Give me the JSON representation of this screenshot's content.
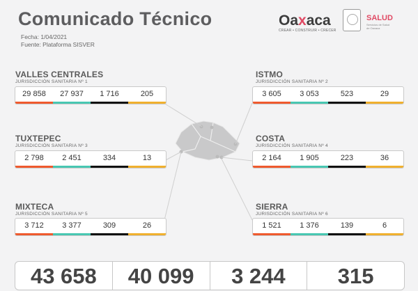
{
  "header": {
    "title": "Comunicado Técnico",
    "fecha": "Fecha: 1/04/2021",
    "fuente": "Fuente: Plataforma SISVER"
  },
  "logos": {
    "oaxaca_text_a": "Oa",
    "oaxaca_text_x": "x",
    "oaxaca_text_b": "aca",
    "oaxaca_tagline": "CREAR • CONSTRUIR • CRECER",
    "salud": "SALUD"
  },
  "colors": {
    "orange": "#ef5a2e",
    "teal": "#48c7b2",
    "black": "#111111",
    "yellow": "#f0b02e",
    "brand_pink": "#e04a64"
  },
  "regions": [
    {
      "name": "VALLES CENTRALES",
      "juris": "JURISDICCIÓN SANITARIA Nº 1",
      "values": [
        "29 858",
        "27 937",
        "1 716",
        "205"
      ]
    },
    {
      "name": "ISTMO",
      "juris": "JURISDICCIÓN SANITARIA Nº 2",
      "values": [
        "3 605",
        "3 053",
        "523",
        "29"
      ]
    },
    {
      "name": "TUXTEPEC",
      "juris": "JURISDICCIÓN SANITARIA Nº 3",
      "values": [
        "2 798",
        "2 451",
        "334",
        "13"
      ]
    },
    {
      "name": "COSTA",
      "juris": "JURISDICCIÓN SANITARIA Nº 4",
      "values": [
        "2 164",
        "1 905",
        "223",
        "36"
      ]
    },
    {
      "name": "MIXTECA",
      "juris": "JURISDICCIÓN SANITARIA Nº 5",
      "values": [
        "3 712",
        "3 377",
        "309",
        "26"
      ]
    },
    {
      "name": "SIERRA",
      "juris": "JURISDICCIÓN SANITARIA Nº 6",
      "values": [
        "1 521",
        "1 376",
        "139",
        "6"
      ]
    }
  ],
  "totals": [
    "43 658",
    "40 099",
    "3 244",
    "315"
  ]
}
